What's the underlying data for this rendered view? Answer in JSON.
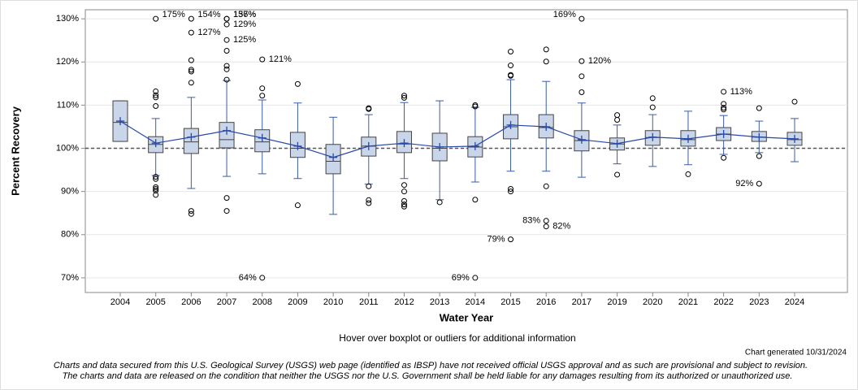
{
  "chart_data": {
    "type": "box",
    "x_label": "Water Year",
    "y_label": "Percent Recovery",
    "note": "Hover over boxplot or outliers for additional information",
    "generated": "Chart generated 10/31/2024",
    "disclaimer": [
      "Charts and data secured from this U.S. Geological Survey (USGS) web page (identified as IBSP) have not received official USGS approval and as such are provisional and subject to revision.",
      "The charts and data are released on the condition that neither the USGS nor the U.S. Government shall be held liable for any damages resulting from its authorized or unauthorized use."
    ],
    "categories": [
      "2004",
      "2005",
      "2006",
      "2007",
      "2008",
      "2009",
      "2010",
      "2011",
      "2012",
      "2013",
      "2014",
      "2015",
      "2016",
      "2017",
      "2019",
      "2020",
      "2021",
      "2022",
      "2023",
      "2024"
    ],
    "box_color": "#c9d5e8",
    "whisker_color": "#3a5ca8",
    "mean_color": "#2748a8",
    "ylim": [
      66.6,
      132.1
    ],
    "yticks": [
      {
        "value": 70,
        "label": "70%"
      },
      {
        "value": 80,
        "label": "80%"
      },
      {
        "value": 90,
        "label": "90%"
      },
      {
        "value": 100,
        "label": "100%"
      },
      {
        "value": 110,
        "label": "110%"
      },
      {
        "value": 120,
        "label": "120%"
      },
      {
        "value": 130,
        "label": "130%"
      }
    ],
    "grid": true,
    "reference_line": 100,
    "boxes": [
      {
        "whisker_low": 101.6,
        "q1": 101.6,
        "median": 106,
        "q3": 111.0,
        "whisker_high": 111.0,
        "mean": 106.3,
        "outliers": []
      },
      {
        "whisker_low": 93.7,
        "q1": 99.0,
        "median": 100.9,
        "q3": 102.7,
        "whisker_high": 106.9,
        "mean": 101.2,
        "outliers": [
          113.2,
          112.3,
          111.8,
          109.8,
          93.4,
          92.9,
          91.0,
          90.6,
          90.2,
          89.2
        ]
      },
      {
        "whisker_low": 90.7,
        "q1": 98.8,
        "median": 101.5,
        "q3": 104.6,
        "whisker_high": 111.8,
        "mean": 102.6,
        "outliers": [
          120.4,
          118.2,
          117.8,
          115.2,
          85.5,
          84.8
        ]
      },
      {
        "whisker_low": 93.5,
        "q1": 100.1,
        "median": 102,
        "q3": 106.0,
        "whisker_high": 115.7,
        "mean": 104.1,
        "outliers": [
          122.6,
          119.1,
          118.3,
          115.9,
          88.5,
          85.5
        ]
      },
      {
        "whisker_low": 94.1,
        "q1": 99.2,
        "median": 101.5,
        "q3": 104.3,
        "whisker_high": 111.2,
        "mean": 102.4,
        "outliers": [
          113.9,
          112.2
        ]
      },
      {
        "whisker_low": 93.0,
        "q1": 97.9,
        "median": 100,
        "q3": 103.7,
        "whisker_high": 110.5,
        "mean": 100.5,
        "outliers": [
          114.9,
          86.8
        ]
      },
      {
        "whisker_low": 84.7,
        "q1": 94.1,
        "median": 97,
        "q3": 100.9,
        "whisker_high": 107.2,
        "mean": 97.9,
        "outliers": []
      },
      {
        "whisker_low": 91.7,
        "q1": 98.2,
        "median": 100.5,
        "q3": 102.6,
        "whisker_high": 107.8,
        "mean": 100.5,
        "outliers": [
          109.3,
          109.1,
          91.2,
          88.0,
          87.3
        ]
      },
      {
        "whisker_low": 93.0,
        "q1": 99.0,
        "median": 101,
        "q3": 103.9,
        "whisker_high": 110.6,
        "mean": 101.2,
        "outliers": [
          112.2,
          111.7,
          91.5,
          90.0,
          87.8,
          87.0,
          86.5
        ]
      },
      {
        "whisker_low": 88.1,
        "q1": 97.1,
        "median": 100,
        "q3": 103.5,
        "whisker_high": 111.0,
        "mean": 100.3,
        "outliers": [
          87.5
        ]
      },
      {
        "whisker_low": 92.2,
        "q1": 98.0,
        "median": 100.3,
        "q3": 102.7,
        "whisker_high": 109.5,
        "mean": 100.5,
        "outliers": [
          110.0,
          109.7,
          88.1
        ]
      },
      {
        "whisker_low": 94.7,
        "q1": 102.2,
        "median": 105,
        "q3": 107.8,
        "whisker_high": 115.9,
        "mean": 105.4,
        "outliers": [
          122.4,
          119.2,
          117.0,
          116.8,
          90.6,
          90.0
        ]
      },
      {
        "whisker_low": 94.7,
        "q1": 102.4,
        "median": 104.8,
        "q3": 107.8,
        "whisker_high": 115.5,
        "mean": 105.0,
        "outliers": [
          122.9,
          120.1,
          91.2
        ]
      },
      {
        "whisker_low": 93.3,
        "q1": 99.4,
        "median": 101.8,
        "q3": 104.1,
        "whisker_high": 110.5,
        "mean": 102.0,
        "outliers": [
          116.7,
          113.0
        ]
      },
      {
        "whisker_low": 96.4,
        "q1": 99.6,
        "median": 101,
        "q3": 102.4,
        "whisker_high": 105.4,
        "mean": 101.1,
        "outliers": [
          107.7,
          106.6,
          93.9
        ]
      },
      {
        "whisker_low": 95.8,
        "q1": 100.7,
        "median": 102.5,
        "q3": 104.1,
        "whisker_high": 107.8,
        "mean": 102.6,
        "outliers": [
          111.6,
          109.5
        ]
      },
      {
        "whisker_low": 96.2,
        "q1": 100.5,
        "median": 102,
        "q3": 104.1,
        "whisker_high": 108.6,
        "mean": 102.2,
        "outliers": [
          94.0
        ]
      },
      {
        "whisker_low": 98.6,
        "q1": 101.8,
        "median": 103.3,
        "q3": 104.8,
        "whisker_high": 107.6,
        "mean": 103.3,
        "outliers": [
          110.3,
          109.4,
          109.0,
          97.8
        ]
      },
      {
        "whisker_low": 99.0,
        "q1": 101.6,
        "median": 102.6,
        "q3": 103.9,
        "whisker_high": 106.3,
        "mean": 102.6,
        "outliers": [
          109.3,
          98.2
        ]
      },
      {
        "whisker_low": 96.9,
        "q1": 100.7,
        "median": 102,
        "q3": 103.7,
        "whisker_high": 106.9,
        "mean": 102.2,
        "outliers": [
          110.8
        ]
      }
    ],
    "annotations": [
      {
        "category": "2005",
        "value": 175,
        "label": "175%"
      },
      {
        "category": "2006",
        "value": 154,
        "label": "154%"
      },
      {
        "category": "2006",
        "value": 126.8,
        "label": "127%"
      },
      {
        "category": "2007",
        "value": 137,
        "label": "137%"
      },
      {
        "category": "2007",
        "value": 156,
        "label": "156%"
      },
      {
        "category": "2007",
        "value": 128.7,
        "label": "129%"
      },
      {
        "category": "2007",
        "value": 125.1,
        "label": "125%"
      },
      {
        "category": "2008",
        "value": 120.6,
        "label": "121%"
      },
      {
        "category": "2008",
        "value": 64,
        "label": "64%"
      },
      {
        "category": "2014",
        "value": 69,
        "label": "69%"
      },
      {
        "category": "2015",
        "value": 78.9,
        "label": "79%"
      },
      {
        "category": "2016",
        "value": 83.2,
        "label": "83%"
      },
      {
        "category": "2016",
        "value": 81.9,
        "label": "82%"
      },
      {
        "category": "2017",
        "value": 169,
        "label": "169%"
      },
      {
        "category": "2017",
        "value": 120.2,
        "label": "120%"
      },
      {
        "category": "2022",
        "value": 113.1,
        "label": "113%"
      },
      {
        "category": "2023",
        "value": 91.8,
        "label": "92%"
      }
    ]
  }
}
